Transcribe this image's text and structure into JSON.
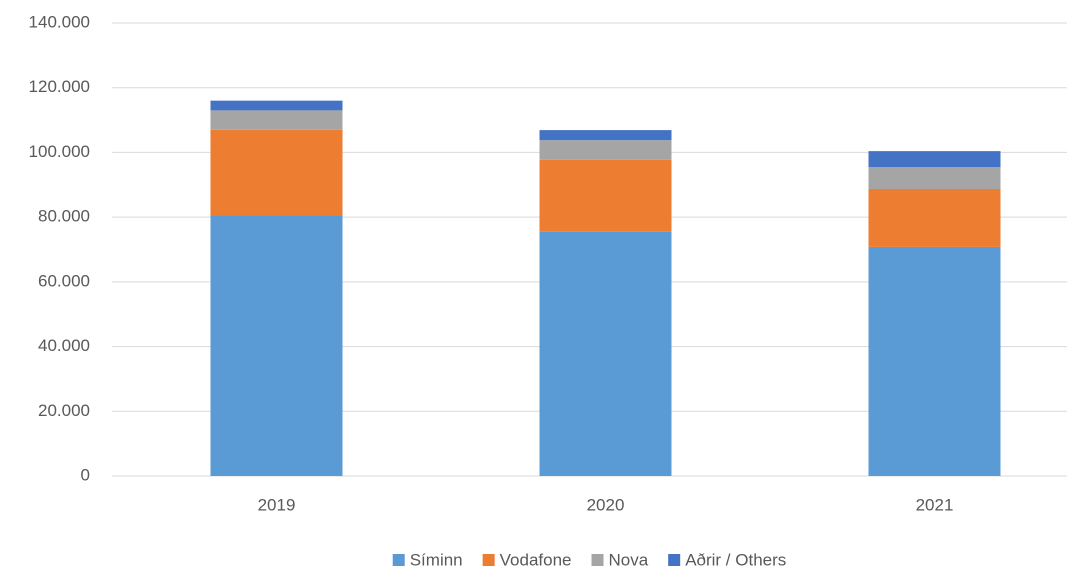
{
  "chart_data": {
    "type": "stacked_bar",
    "categories": [
      "2019",
      "2020",
      "2021"
    ],
    "series": [
      {
        "name": "Síminn",
        "color": "#5b9bd5",
        "values": [
          80500,
          75500,
          70800
        ]
      },
      {
        "name": "Vodafone",
        "color": "#ed7d31",
        "values": [
          26500,
          22200,
          17900
        ]
      },
      {
        "name": "Nova",
        "color": "#a5a5a5",
        "values": [
          6000,
          6100,
          6800
        ]
      },
      {
        "name": "Aðrir / Others",
        "color": "#4472c4",
        "values": [
          3000,
          3100,
          4900
        ]
      }
    ],
    "ylim": [
      0,
      140000
    ],
    "yticks": [
      0,
      {
        "value": 20000,
        "label": "20.000"
      },
      {
        "value": 40000,
        "label": "40.000"
      },
      {
        "value": 60000,
        "label": "60.000"
      },
      {
        "value": 80000,
        "label": "80.000"
      },
      {
        "value": 100000,
        "label": "100.000"
      },
      {
        "value": 120000,
        "label": "120.000"
      },
      {
        "value": 140000,
        "label": "140.000"
      }
    ],
    "grid": true,
    "legend": "bottom"
  }
}
